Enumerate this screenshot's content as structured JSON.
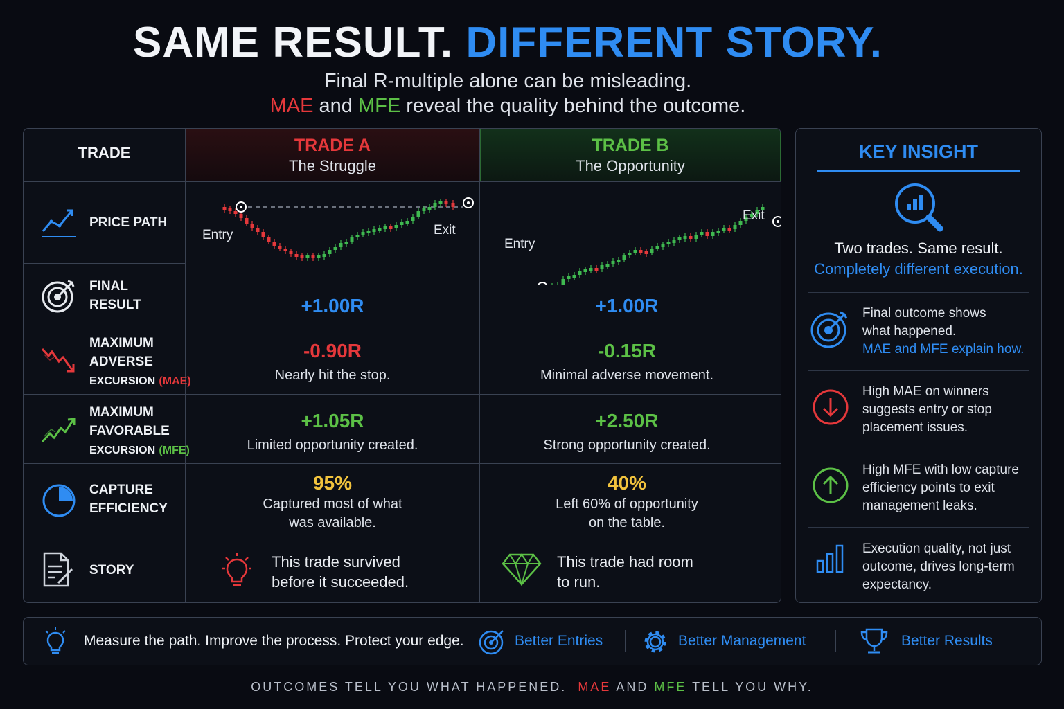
{
  "header": {
    "title_white": "SAME RESULT.",
    "title_blue": "DIFFERENT STORY.",
    "subtitle_line1": "Final R-multiple alone can be misleading.",
    "subtitle_mae": "MAE",
    "subtitle_and": "and",
    "subtitle_mfe": "MFE",
    "subtitle_rest": "reveal the quality behind the outcome."
  },
  "table": {
    "col_label": "TRADE",
    "trade_a": {
      "name": "TRADE A",
      "tagline": "The Struggle"
    },
    "trade_b": {
      "name": "TRADE B",
      "tagline": "The Opportunity"
    },
    "rows": {
      "price_path": {
        "label": "PRICE PATH",
        "entry": "Entry",
        "exit": "Exit"
      },
      "final_result": {
        "label_1": "FINAL",
        "label_2": "RESULT",
        "a": "+1.00R",
        "b": "+1.00R"
      },
      "mae": {
        "label_1": "MAXIMUM",
        "label_2": "ADVERSE",
        "label_3": "EXCURSION",
        "abbr": "(MAE)",
        "a_value": "-0.90R",
        "a_note": "Nearly hit the stop.",
        "b_value": "-0.15R",
        "b_note": "Minimal adverse movement."
      },
      "mfe": {
        "label_1": "MAXIMUM",
        "label_2": "FAVORABLE",
        "label_3": "EXCURSION",
        "abbr": "(MFE)",
        "a_value": "+1.05R",
        "a_note": "Limited opportunity created.",
        "b_value": "+2.50R",
        "b_note": "Strong opportunity created."
      },
      "capture": {
        "label_1": "CAPTURE",
        "label_2": "EFFICIENCY",
        "a_value": "95%",
        "a_note_1": "Captured most of what",
        "a_note_2": "was available.",
        "b_value": "40%",
        "b_note_1": "Left 60% of opportunity",
        "b_note_2": "on the table.",
        "pie_fraction": 0.25
      },
      "story": {
        "label": "STORY",
        "a_1": "This trade survived",
        "a_2": "before it succeeded.",
        "b_1": "This trade had room",
        "b_2": "to run."
      }
    }
  },
  "insight": {
    "title": "KEY INSIGHT",
    "lead_1": "Two trades. Same result.",
    "lead_2": "Completely different execution.",
    "items": [
      {
        "icon": "target-icon",
        "l1": "Final outcome shows",
        "l2": "what happened.",
        "l3": "MAE and MFE explain how."
      },
      {
        "icon": "arrow-down-circle-icon",
        "l1": "High MAE on winners",
        "l2": "suggests entry or stop",
        "l3": "placement issues."
      },
      {
        "icon": "arrow-up-circle-icon",
        "l1": "High MFE with low capture",
        "l2": "efficiency points to exit",
        "l3": "management leaks."
      },
      {
        "icon": "bar-chart-icon",
        "l1": "Execution quality, not just",
        "l2": "outcome, drives long-term",
        "l3": "expectancy."
      }
    ]
  },
  "bar": {
    "motto": "Measure the path. Improve the process. Protect your edge.",
    "entries": "Better Entries",
    "management": "Better Management",
    "results": "Better Results"
  },
  "footer": {
    "part1": "OUTCOMES TELL YOU WHAT HAPPENED.",
    "mae": "MAE",
    "and": "AND",
    "mfe": "MFE",
    "part2": "TELL YOU WHY."
  },
  "colors": {
    "red": "#e5383b",
    "green": "#5cc046",
    "blue": "#2f8cf2",
    "yellow": "#f2c33d",
    "background": "#090b12"
  }
}
